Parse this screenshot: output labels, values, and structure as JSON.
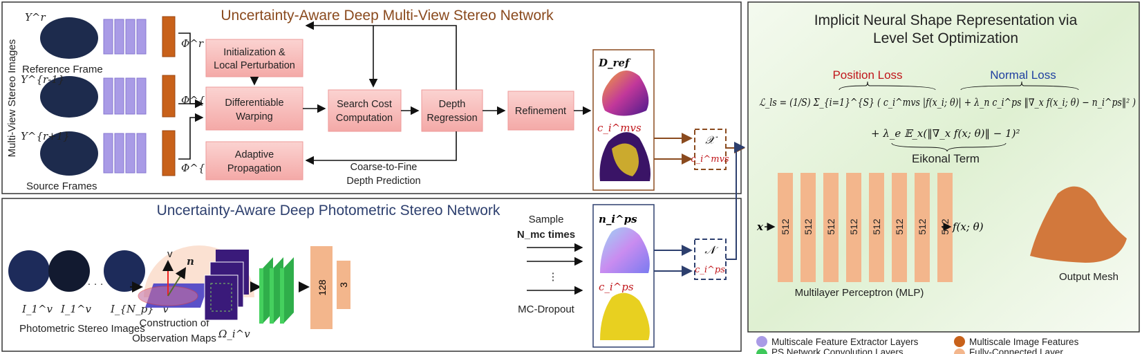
{
  "mvs": {
    "title": "Uncertainty-Aware Deep Multi-View Stereo Network",
    "side_label": "Multi-View Stereo Images",
    "ref_label": "Reference Frame",
    "src_label": "Source Frames",
    "img_labels": [
      "Y^r",
      "Y^{r-1}",
      "Y^{r+1}"
    ],
    "feat_labels": [
      "Φ^r",
      "Φ^{r-1}",
      "Φ^{r+1}"
    ],
    "blocks": {
      "init": [
        "Initialization &",
        "Local Perturbation"
      ],
      "warp": [
        "Differentiable",
        "Warping"
      ],
      "prop": [
        "Adaptive",
        "Propagation"
      ],
      "cost": [
        "Search Cost",
        "Computation"
      ],
      "depth": [
        "Depth",
        "Regression"
      ],
      "refine": "Refinement"
    },
    "coarse_label": [
      "Coarse-to-Fine",
      "Depth Prediction"
    ],
    "dref_label": "D_ref",
    "conf_label": "c_i^mvs",
    "out_x": "𝒳",
    "out_c": "c_i^mvs"
  },
  "ps": {
    "title": "Uncertainty-Aware Deep Photometric Stereo Network",
    "img_labels": [
      "I_1^v",
      "I_1^v",
      "I_{N_p}^v"
    ],
    "images_label": "Photometric Stereo Images",
    "dots": "· · ·",
    "obs_label": [
      "Construction of",
      "Observation Maps"
    ],
    "v_label": "v",
    "n_label": "n",
    "omega_label": "Ω_i^v",
    "fc": [
      "128",
      "3"
    ],
    "sample_label": [
      "Sample",
      "N_mc times"
    ],
    "dropout_label": "MC-Dropout",
    "normal_label": "n_i^ps",
    "conf_label": "c_i^ps",
    "out_n": "𝒩",
    "out_c": "c_i^ps"
  },
  "inr": {
    "title": [
      "Implicit Neural Shape Representation via",
      "Level Set Optimization"
    ],
    "position_loss": "Position Loss",
    "normal_loss": "Normal Loss",
    "eikonal": "Eikonal Term",
    "eq_line1": "ℒ_ls = (1/S) Σ_{i=1}^{S} ( c_i^mvs |f(x_i; θ)| + λ_n c_i^ps ‖∇_x f(x_i; θ) − n_i^ps‖² )",
    "eq_line2": "+ λ_e 𝔼_x(‖∇_x f(x; θ)‖ − 1)²",
    "mlp_units": [
      "512",
      "512",
      "512",
      "512",
      "512",
      "512",
      "512",
      "512"
    ],
    "mlp_input": "x",
    "mlp_output": "f(x; θ)",
    "mlp_label": "Multilayer Perceptron (MLP)",
    "mesh_label": "Output Mesh"
  },
  "legend": [
    {
      "label": "Multiscale Feature Extractor Layers",
      "color": "#a99be6"
    },
    {
      "label": "Multiscale Image Features",
      "color": "#c8611a"
    },
    {
      "label": "PS Network Convolution Layers",
      "color": "#3ec85a"
    },
    {
      "label": "Fully-Connected Layer",
      "color": "#f3b68c"
    }
  ],
  "colors": {
    "mvs": "#8a4a1e",
    "ps": "#2d3f6e",
    "pink": "#f6b8b6",
    "fc": "#f3b68c",
    "green_panel": "#e6f3dc",
    "red": "#c0151a",
    "blue": "#1f3fa0"
  }
}
